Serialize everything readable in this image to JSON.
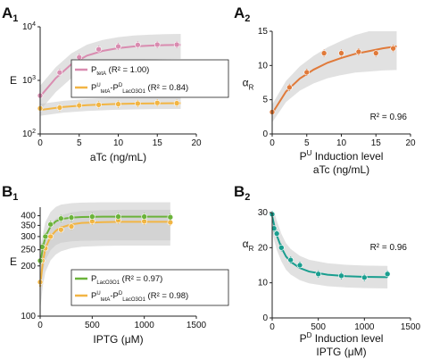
{
  "panels": {
    "A1": {
      "letter": "A",
      "sub": "1"
    },
    "A2": {
      "letter": "A",
      "sub": "2"
    },
    "B1": {
      "letter": "B",
      "sub": "1"
    },
    "B2": {
      "letter": "B",
      "sub": "2"
    }
  },
  "chart_data": [
    {
      "id": "A1",
      "type": "scatter",
      "yscale": "log",
      "xlabel": "aTc (ng/mL)",
      "ylabel": "E",
      "xlim": [
        0,
        20
      ],
      "ylim": [
        100,
        10000
      ],
      "xticks": [
        "0",
        "5",
        "10",
        "15",
        "20"
      ],
      "yticks": [
        "10^2",
        "10^3",
        "10^4"
      ],
      "legend": {
        "placement": "center-right"
      },
      "series": [
        {
          "name": "P_tetA",
          "legend_main": "P",
          "legend_sub": "tetA",
          "legend_r2": "(R² = 1.00)",
          "color": "#d98cb0",
          "x": [
            0,
            2.5,
            5,
            7.5,
            10,
            12.5,
            15,
            17.5
          ],
          "y": [
            520,
            1400,
            2700,
            3800,
            4300,
            4600,
            4650,
            4650
          ],
          "fit_x": [
            0,
            2,
            4,
            6,
            8,
            10,
            12,
            14,
            16,
            18
          ],
          "fit_y": [
            500,
            1100,
            2000,
            2900,
            3550,
            4000,
            4300,
            4450,
            4550,
            4600
          ]
        },
        {
          "name": "P^U_tetA-P^D_LacO3O1",
          "legend_main1": "P",
          "legend_sup1": "U",
          "legend_sub1": "tetA",
          "legend_mid": "-P",
          "legend_sup2": "D",
          "legend_sub2": "LacO3O1",
          "legend_r2": "(R² = 0.84)",
          "color": "#f2b544",
          "x": [
            0,
            2.5,
            5,
            7.5,
            10,
            12.5,
            15,
            17.5
          ],
          "y": [
            300,
            310,
            340,
            350,
            360,
            370,
            380,
            375
          ],
          "fit_x": [
            0,
            3,
            6,
            9,
            12,
            15,
            18
          ],
          "fit_y": [
            280,
            320,
            345,
            360,
            368,
            373,
            375
          ]
        }
      ]
    },
    {
      "id": "A2",
      "type": "scatter",
      "xlabel_line1_main": "P",
      "xlabel_line1_sup": "U",
      "xlabel_line1_rest": " Induction level",
      "xlabel_line2": "aTc (ng/mL)",
      "ylabel_main": "α",
      "ylabel_sub": "R",
      "xlim": [
        0,
        20
      ],
      "ylim": [
        0,
        15
      ],
      "xticks": [
        "0",
        "5",
        "10",
        "15",
        "20"
      ],
      "yticks": [
        "0",
        "5",
        "10",
        "15"
      ],
      "annotation": "R² = 0.96",
      "series": [
        {
          "color": "#e07a3a",
          "x": [
            0,
            2.5,
            5,
            7.5,
            10,
            12.5,
            15,
            17.5
          ],
          "y": [
            3.2,
            6.8,
            9.0,
            11.8,
            11.8,
            12.0,
            11.8,
            12.5
          ],
          "fit_x": [
            0,
            2,
            4,
            6,
            8,
            10,
            12,
            14,
            16,
            18
          ],
          "fit_y": [
            3.0,
            6.2,
            8.1,
            9.4,
            10.4,
            11.1,
            11.7,
            12.1,
            12.5,
            12.8
          ]
        }
      ]
    },
    {
      "id": "B1",
      "type": "scatter",
      "yscale": "log",
      "xlabel": "IPTG (μM)",
      "ylabel": "E",
      "xlim": [
        0,
        1500
      ],
      "ylim": [
        100,
        450
      ],
      "xticks": [
        "0",
        "500",
        "1000",
        "1500"
      ],
      "yticks": [
        "100",
        "200",
        "250",
        "300",
        "350",
        "400"
      ],
      "legend": {
        "placement": "bottom-right"
      },
      "series": [
        {
          "name": "P_LacO3O1",
          "legend_main": "P",
          "legend_sub": "LacO3O1",
          "legend_r2": "(R² = 0.97)",
          "color": "#6bb33a",
          "x": [
            0,
            20,
            50,
            100,
            200,
            300,
            500,
            750,
            1000,
            1250
          ],
          "y": [
            215,
            260,
            300,
            355,
            385,
            390,
            395,
            395,
            395,
            392
          ],
          "fit_x": [
            0,
            25,
            50,
            100,
            150,
            200,
            300,
            400,
            600,
            800,
            1000,
            1250
          ],
          "fit_y": [
            205,
            255,
            300,
            345,
            370,
            382,
            390,
            393,
            395,
            395,
            395,
            395
          ]
        },
        {
          "name": "P^U_tetA-P^D_LacO3O1",
          "legend_main1": "P",
          "legend_sup1": "U",
          "legend_sub1": "tetA",
          "legend_mid": "-P",
          "legend_sup2": "D",
          "legend_sub2": "LacO3O1",
          "legend_r2": "(R² = 0.98)",
          "color": "#f2b544",
          "x": [
            0,
            20,
            50,
            100,
            200,
            300,
            500,
            750,
            1000,
            1250
          ],
          "y": [
            160,
            215,
            255,
            300,
            330,
            345,
            370,
            375,
            370,
            365
          ],
          "fit_x": [
            0,
            25,
            50,
            100,
            150,
            200,
            300,
            400,
            600,
            800,
            1000,
            1250
          ],
          "fit_y": [
            150,
            210,
            255,
            300,
            325,
            340,
            355,
            362,
            366,
            368,
            368,
            368
          ]
        }
      ]
    },
    {
      "id": "B2",
      "type": "scatter",
      "xlabel_line1_main": "P",
      "xlabel_line1_sup": "D",
      "xlabel_line1_rest": " Induction level",
      "xlabel_line2": "IPTG (μM)",
      "ylabel_main": "α",
      "ylabel_sub": "R",
      "xlim": [
        0,
        1500
      ],
      "ylim": [
        0,
        30
      ],
      "xticks": [
        "0",
        "500",
        "1000",
        "1500"
      ],
      "yticks": [
        "0",
        "10",
        "20",
        "30"
      ],
      "annotation": "R² = 0.96",
      "series": [
        {
          "color": "#1a9e8f",
          "x": [
            0,
            20,
            50,
            100,
            200,
            300,
            500,
            750,
            1000,
            1250
          ],
          "y": [
            29.5,
            25.5,
            24.0,
            20.0,
            16.5,
            15.0,
            12.5,
            12.0,
            11.5,
            12.5
          ],
          "fit_x": [
            0,
            25,
            50,
            100,
            150,
            200,
            300,
            400,
            600,
            800,
            1000,
            1250
          ],
          "fit_y": [
            29,
            26,
            23.5,
            20,
            17.5,
            16,
            14.2,
            13.2,
            12.3,
            11.9,
            11.7,
            11.6
          ]
        }
      ]
    }
  ]
}
